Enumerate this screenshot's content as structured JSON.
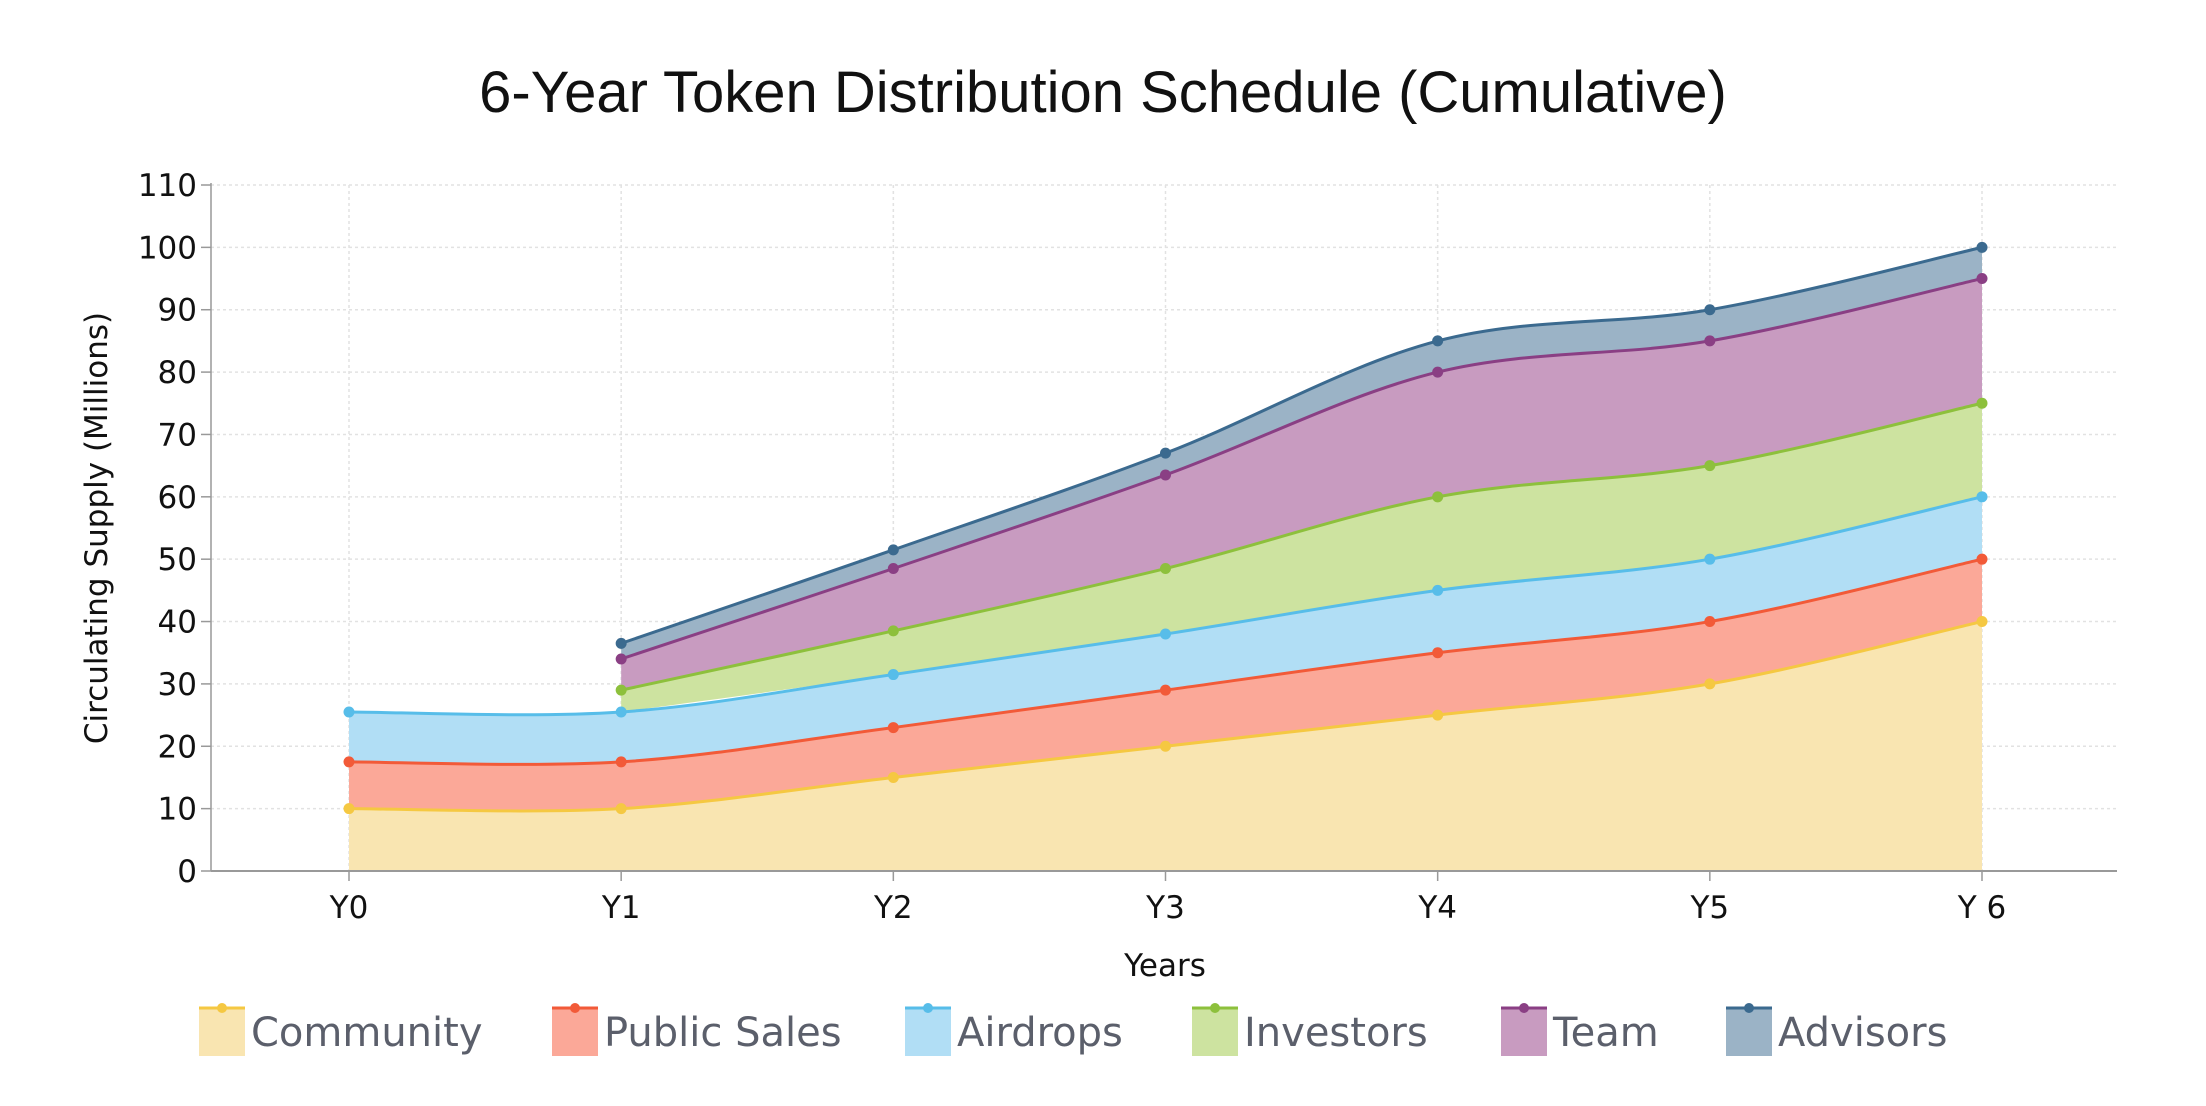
{
  "chart_data": {
    "type": "area",
    "stacked": true,
    "smooth": true,
    "title": "6-Year Token Distribution Schedule (Cumulative)",
    "xlabel": "Years",
    "ylabel": "Circulating Supply (Millions)",
    "categories": [
      "Y0",
      "Y1",
      "Y2",
      "Y3",
      "Y4",
      "Y5",
      "Y 6"
    ],
    "ylim": [
      0,
      110
    ],
    "yticks": [
      0,
      10,
      20,
      30,
      40,
      50,
      60,
      70,
      80,
      90,
      100,
      110
    ],
    "grid": true,
    "legend_position": "bottom",
    "series": [
      {
        "name": "Community",
        "values": [
          10,
          10,
          15,
          20,
          25,
          30,
          40
        ],
        "line_color": "#f5c842",
        "fill_color": "#f9e5b1"
      },
      {
        "name": "Public Sales",
        "values": [
          7.5,
          7.5,
          8,
          9,
          10,
          10,
          10
        ],
        "line_color": "#f25a38",
        "fill_color": "#fba898"
      },
      {
        "name": "Airdrops",
        "values": [
          8,
          8,
          8.5,
          9,
          10,
          10,
          10
        ],
        "line_color": "#57bde9",
        "fill_color": "#b1def5"
      },
      {
        "name": "Investors",
        "values": [
          null,
          3.5,
          7,
          10.5,
          15,
          15,
          15
        ],
        "line_color": "#8dc03c",
        "fill_color": "#cde3a0"
      },
      {
        "name": "Team",
        "values": [
          null,
          5,
          10,
          15,
          20,
          20,
          20
        ],
        "line_color": "#8a3f84",
        "fill_color": "#c89bc0"
      },
      {
        "name": "Advisors",
        "values": [
          null,
          2.5,
          3,
          3.5,
          5,
          5,
          5
        ],
        "line_color": "#3b6a8f",
        "fill_color": "#9bb3c6"
      }
    ]
  }
}
